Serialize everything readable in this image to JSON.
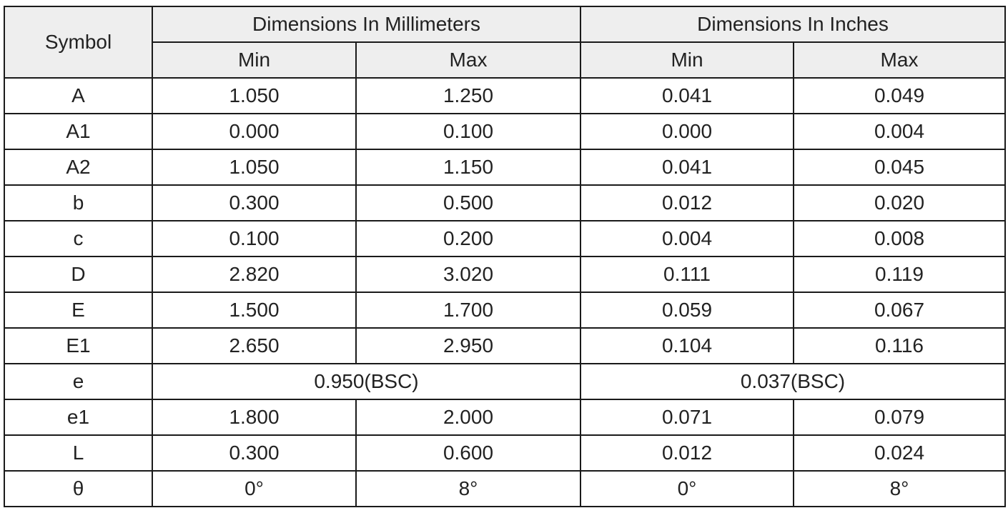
{
  "table": {
    "symbol": "Symbol",
    "groups": [
      "Dimensions In Millimeters",
      "Dimensions In Inches"
    ],
    "subheaders": [
      "Min",
      "Max",
      "Min",
      "Max"
    ],
    "rows": [
      [
        "A",
        "1.050",
        "1.250",
        "0.041",
        "0.049"
      ],
      [
        "A1",
        "0.000",
        "0.100",
        "0.000",
        "0.004"
      ],
      [
        "A2",
        "1.050",
        "1.150",
        "0.041",
        "0.045"
      ],
      [
        "b",
        "0.300",
        "0.500",
        "0.012",
        "0.020"
      ],
      [
        "c",
        "0.100",
        "0.200",
        "0.004",
        "0.008"
      ],
      [
        "D",
        "2.820",
        "3.020",
        "0.111",
        "0.119"
      ],
      [
        "E",
        "1.500",
        "1.700",
        "0.059",
        "0.067"
      ],
      [
        "E1",
        "2.650",
        "2.950",
        "0.104",
        "0.116"
      ],
      [
        "e",
        "0.950(BSC)",
        "0.037(BSC)"
      ],
      [
        "e1",
        "1.800",
        "2.000",
        "0.071",
        "0.079"
      ],
      [
        "L",
        "0.300",
        "0.600",
        "0.012",
        "0.024"
      ],
      [
        "θ",
        "0°",
        "8°",
        "0°",
        "8°"
      ]
    ]
  }
}
